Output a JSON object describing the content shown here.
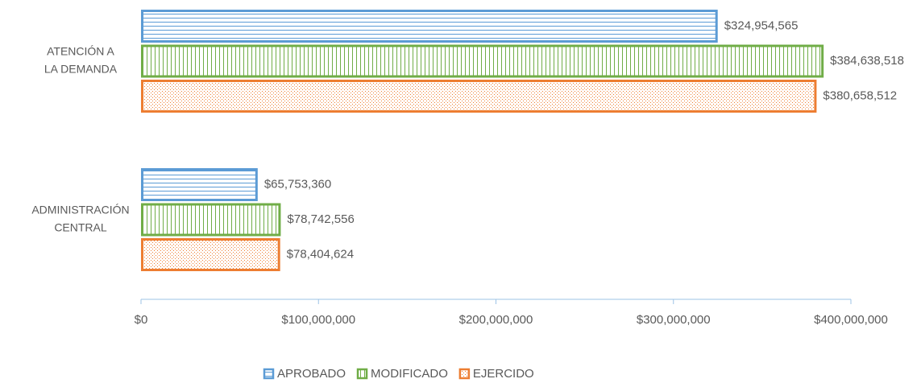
{
  "chart_data": {
    "type": "hbar",
    "categories": [
      [
        "ATENCIÓN A",
        "LA DEMANDA"
      ],
      [
        "ADMINISTRACIÓN",
        "CENTRAL"
      ]
    ],
    "series": [
      {
        "name": "APROBADO",
        "color": "#5b9bd5",
        "pattern": "horizontal-lines",
        "values": [
          324954565,
          65753360
        ],
        "value_labels": [
          "$324,954,565",
          "$65,753,360"
        ]
      },
      {
        "name": "MODIFICADO",
        "color": "#70ad47",
        "pattern": "vertical-lines",
        "values": [
          384638518,
          78742556
        ],
        "value_labels": [
          "$384,638,518",
          "$78,742,556"
        ]
      },
      {
        "name": "EJERCIDO",
        "color": "#ed7d31",
        "pattern": "dots",
        "values": [
          380658512,
          78404624
        ],
        "value_labels": [
          "$380,658,512",
          "$78,404,624"
        ]
      }
    ],
    "xlim": [
      0,
      400000000
    ],
    "xticks": [
      {
        "value": 0,
        "label": "$0"
      },
      {
        "value": 100000000,
        "label": "$100,000,000"
      },
      {
        "value": 200000000,
        "label": "$200,000,000"
      },
      {
        "value": 300000000,
        "label": "$300,000,000"
      },
      {
        "value": 400000000,
        "label": "$400,000,000"
      }
    ],
    "legend": "bottom"
  }
}
